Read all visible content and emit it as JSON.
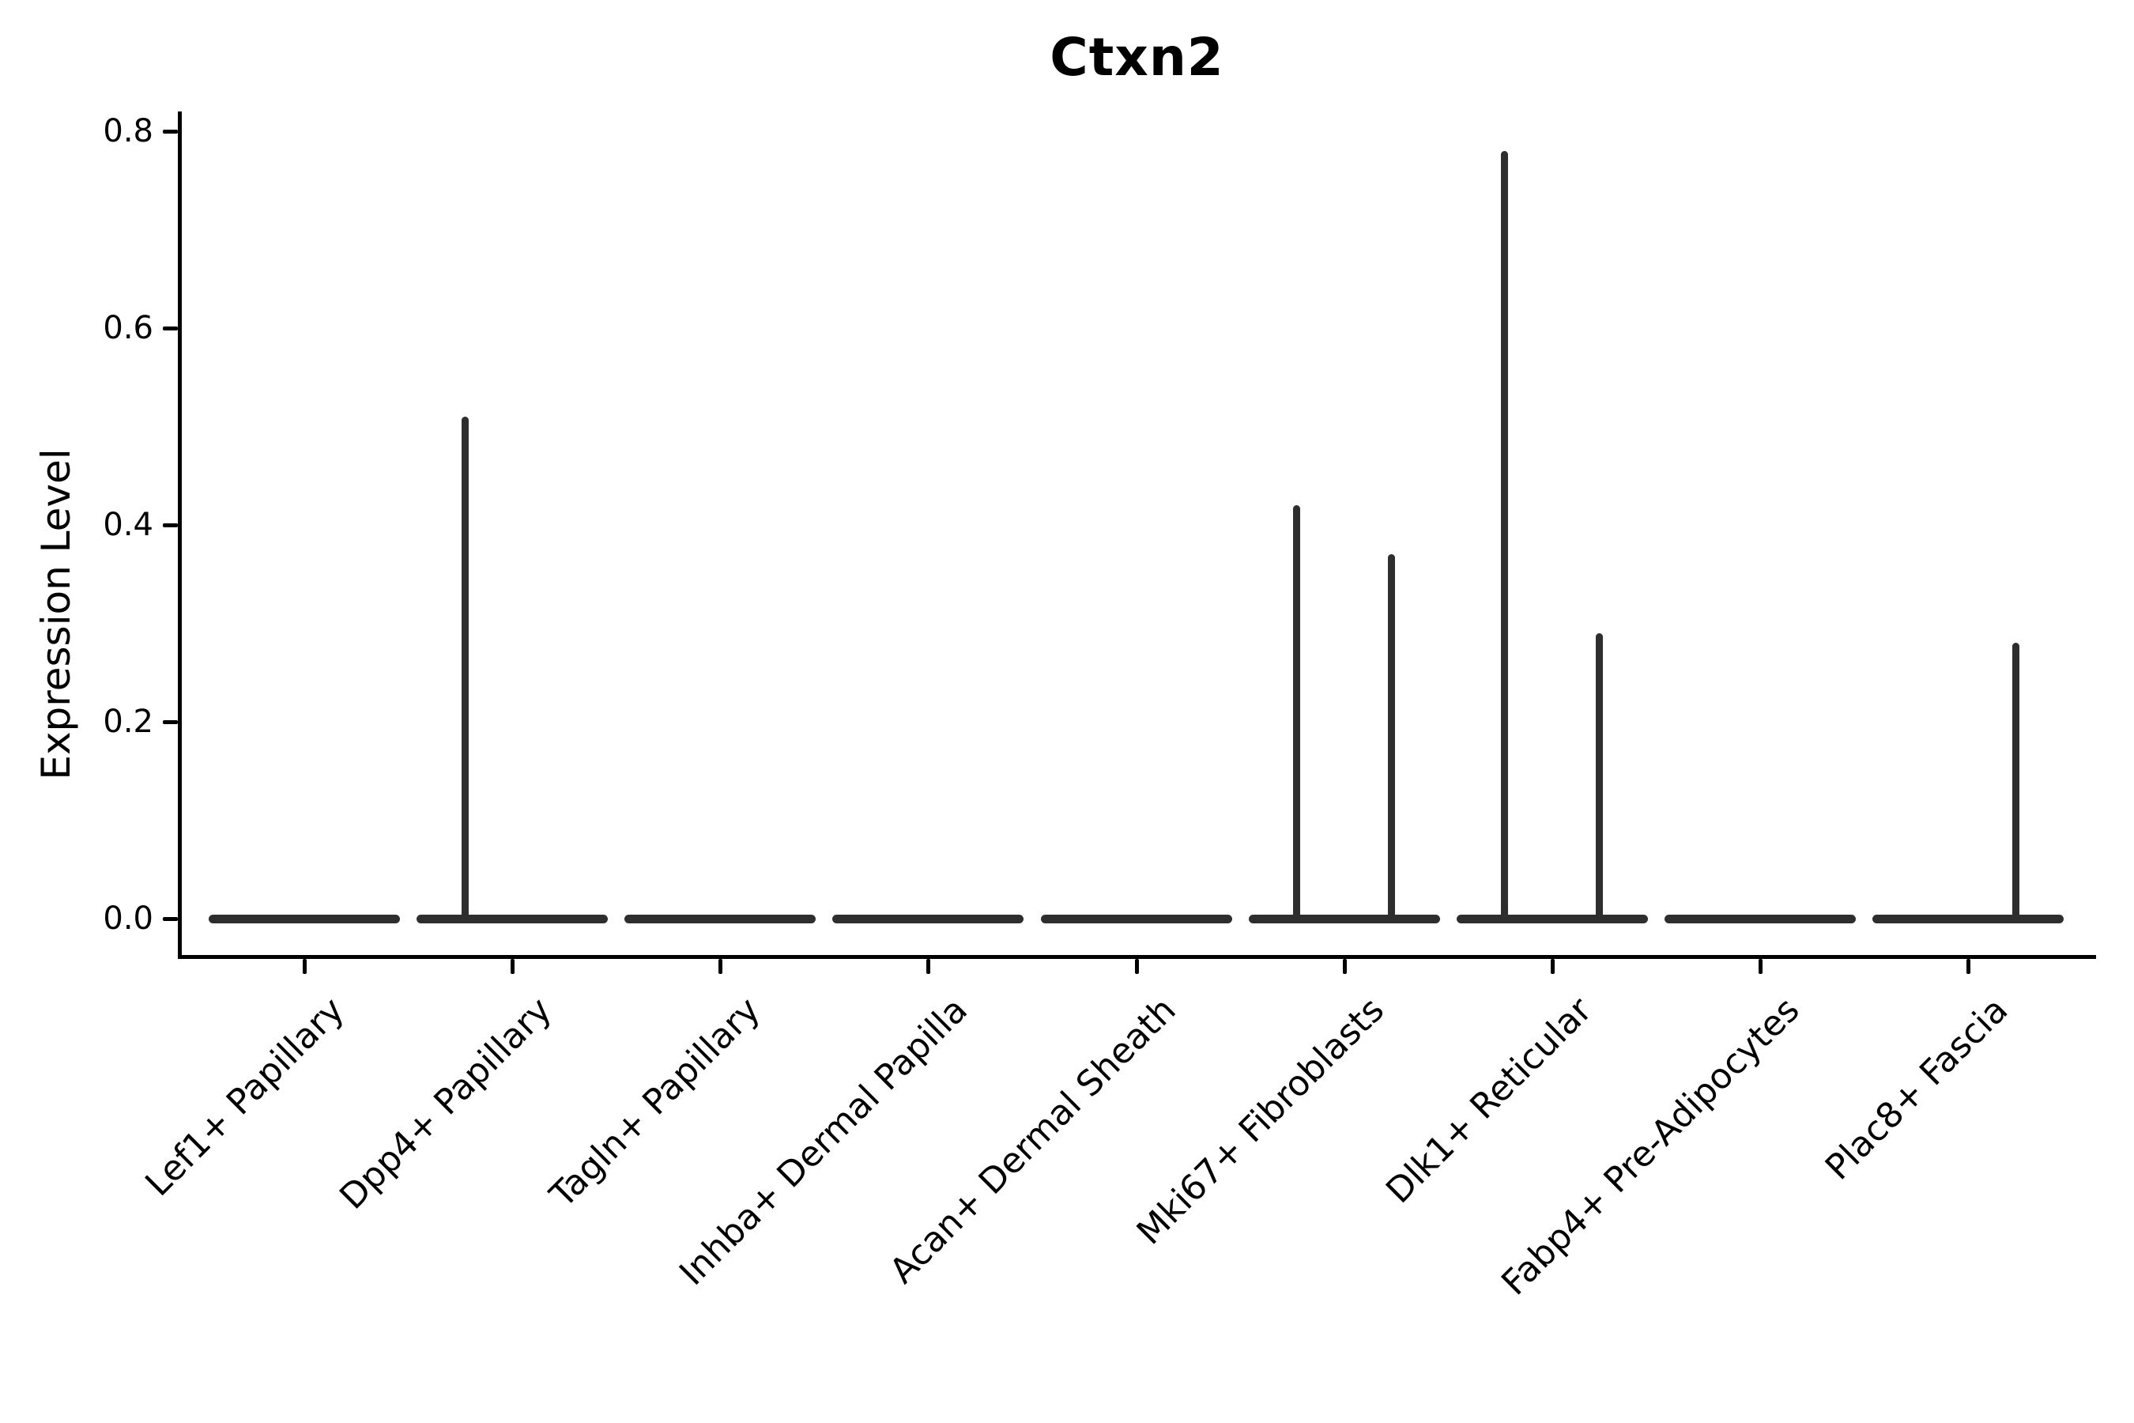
{
  "figure": {
    "background": "#ffffff"
  },
  "chart_data": {
    "type": "violin",
    "title": "Ctxn2",
    "ylabel": "Expression Level",
    "xlabel": "",
    "ylim": [
      0,
      0.8
    ],
    "yticks": [
      "0.0",
      "0.2",
      "0.4",
      "0.6",
      "0.8"
    ],
    "grid": false,
    "legend": false,
    "categories": [
      "Lef1+ Papillary",
      "Dpp4+ Papillary",
      "Tagln+ Papillary",
      "Inhba+ Dermal Papilla",
      "Acan+ Dermal Sheath",
      "Mki67+ Fibroblasts",
      "Dlk1+ Reticular",
      "Fabp4+ Pre-Adipocytes",
      "Plac8+ Fascia"
    ],
    "violins": [
      {
        "category": "Lef1+ Papillary",
        "baseline": 0.0,
        "spikes": []
      },
      {
        "category": "Dpp4+ Papillary",
        "baseline": 0.0,
        "spikes": [
          {
            "side": "left",
            "max": 0.51
          }
        ]
      },
      {
        "category": "Tagln+ Papillary",
        "baseline": 0.0,
        "spikes": []
      },
      {
        "category": "Inhba+ Dermal Papilla",
        "baseline": 0.0,
        "spikes": []
      },
      {
        "category": "Acan+ Dermal Sheath",
        "baseline": 0.0,
        "spikes": []
      },
      {
        "category": "Mki67+ Fibroblasts",
        "baseline": 0.0,
        "spikes": [
          {
            "side": "left",
            "max": 0.42
          },
          {
            "side": "right",
            "max": 0.37
          }
        ]
      },
      {
        "category": "Dlk1+ Reticular",
        "baseline": 0.0,
        "spikes": [
          {
            "side": "left",
            "max": 0.78
          },
          {
            "side": "right",
            "max": 0.29
          }
        ]
      },
      {
        "category": "Fabp4+ Pre-Adipocytes",
        "baseline": 0.0,
        "spikes": []
      },
      {
        "category": "Plac8+ Fascia",
        "baseline": 0.0,
        "spikes": [
          {
            "side": "right",
            "max": 0.28
          }
        ]
      }
    ],
    "colors": {
      "violin_edge": "#2e2e2e",
      "axis": "#000000",
      "text": "#000000",
      "background": "#ffffff"
    }
  }
}
